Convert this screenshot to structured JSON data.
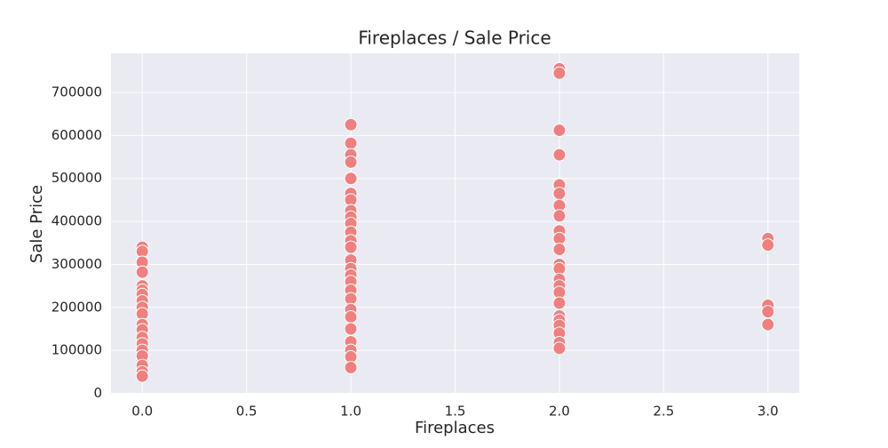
{
  "chart_data": {
    "type": "scatter",
    "title": "Fireplaces / Sale Price",
    "x_label": "Fireplaces",
    "y_label": "Sale Price",
    "x": [
      0,
      0,
      0,
      0,
      0,
      0,
      0,
      0,
      0,
      0,
      0,
      0,
      0,
      0,
      0,
      0,
      0,
      0,
      0,
      1,
      1,
      1,
      1,
      1,
      1,
      1,
      1,
      1,
      1,
      1,
      1,
      1,
      1,
      1,
      1,
      1,
      1,
      1,
      1,
      1,
      1,
      1,
      1,
      1,
      1,
      2,
      2,
      2,
      2,
      2,
      2,
      2,
      2,
      2,
      2,
      2,
      2,
      2,
      2,
      2,
      2,
      2,
      2,
      2,
      2,
      2,
      2,
      2,
      3,
      3,
      3,
      3,
      3
    ],
    "values": [
      340000,
      330000,
      305000,
      282000,
      250000,
      240000,
      230000,
      215000,
      200000,
      185000,
      160000,
      148000,
      130000,
      115000,
      100000,
      87000,
      65000,
      50000,
      40000,
      625000,
      582000,
      555000,
      538000,
      500000,
      465000,
      450000,
      425000,
      410000,
      395000,
      375000,
      355000,
      340000,
      310000,
      290000,
      275000,
      260000,
      240000,
      220000,
      195000,
      178000,
      150000,
      120000,
      100000,
      85000,
      60000,
      755000,
      745000,
      612000,
      555000,
      485000,
      465000,
      437000,
      413000,
      378000,
      360000,
      335000,
      300000,
      290000,
      265000,
      250000,
      235000,
      210000,
      180000,
      170000,
      158000,
      140000,
      118000,
      105000,
      360000,
      345000,
      205000,
      190000,
      160000
    ],
    "color": "#f08080",
    "xlim": [
      -0.15,
      3.15
    ],
    "xticks": [
      {
        "value": 0,
        "label": "0.0"
      },
      0.5,
      {
        "value": 1,
        "label": "1.0"
      },
      1.5,
      {
        "value": 2,
        "label": "2.0"
      },
      2.5,
      {
        "value": 3,
        "label": "3.0"
      }
    ],
    "ylim": [
      -1000,
      791000
    ],
    "yticks": [
      0,
      100000,
      200000,
      300000,
      400000,
      500000,
      600000,
      700000
    ],
    "grid": true
  }
}
